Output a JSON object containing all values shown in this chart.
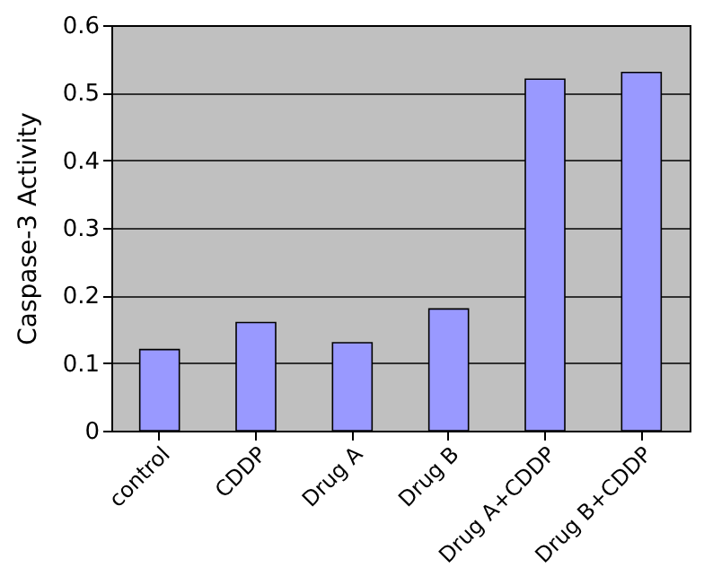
{
  "chart_data": {
    "type": "bar",
    "ylabel": "Caspase-3 Activity",
    "categories": [
      "control",
      "CDDP",
      "Drug A",
      "Drug B",
      "Drug A+CDDP",
      "Drug B+CDDP"
    ],
    "values": [
      0.12,
      0.16,
      0.13,
      0.18,
      0.52,
      0.53
    ],
    "color": "#9999ff",
    "ylim": [
      0,
      0.6
    ],
    "yticks": [
      0,
      0.1,
      0.2,
      0.3,
      0.4,
      0.5,
      0.6
    ],
    "grid": "y"
  }
}
